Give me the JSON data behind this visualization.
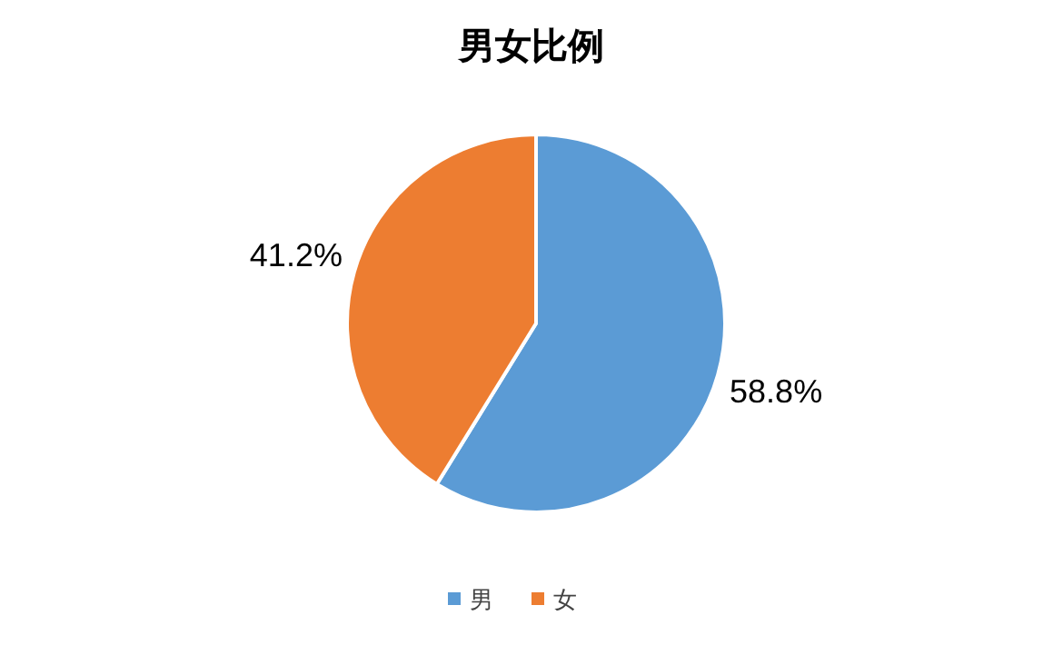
{
  "chart_data": {
    "type": "pie",
    "title": "男女比例",
    "categories": [
      "男",
      "女"
    ],
    "values": [
      58.8,
      41.2
    ],
    "colors": [
      "#5b9bd5",
      "#ed7d31"
    ],
    "value_labels": [
      "58.8%",
      "41.2%"
    ],
    "legend": "bottom"
  }
}
